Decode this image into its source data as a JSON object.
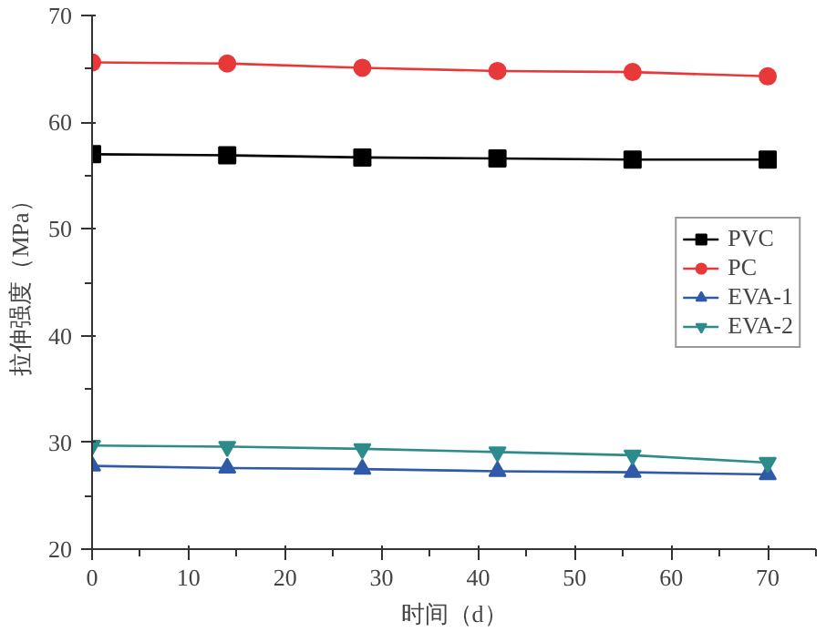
{
  "chart_data": {
    "type": "line",
    "xlabel": "时间（d）",
    "ylabel": "拉伸强度（MPa）",
    "x": [
      0,
      14,
      28,
      42,
      56,
      70
    ],
    "xlim": [
      0,
      75
    ],
    "xticks": [
      0,
      10,
      20,
      30,
      40,
      50,
      60,
      70
    ],
    "ylim": [
      20,
      70
    ],
    "yticks": [
      20,
      30,
      40,
      50,
      60,
      70
    ],
    "grid": false,
    "legend": "right",
    "line_style": "solid",
    "series": [
      {
        "name": "PVC",
        "color": "#000000",
        "marker": "square",
        "values": [
          57.0,
          56.9,
          56.7,
          56.6,
          56.5,
          56.5
        ]
      },
      {
        "name": "PC",
        "color": "#e8383a",
        "marker": "circle",
        "values": [
          65.6,
          65.5,
          65.1,
          64.8,
          64.7,
          64.3
        ]
      },
      {
        "name": "EVA-1",
        "color": "#2e5aa8",
        "marker": "triangle",
        "values": [
          27.8,
          27.6,
          27.5,
          27.3,
          27.2,
          27.0
        ]
      },
      {
        "name": "EVA-2",
        "color": "#2e8b8b",
        "marker": "triangle",
        "values": [
          29.7,
          29.6,
          29.4,
          29.1,
          28.8,
          28.1
        ]
      }
    ]
  }
}
